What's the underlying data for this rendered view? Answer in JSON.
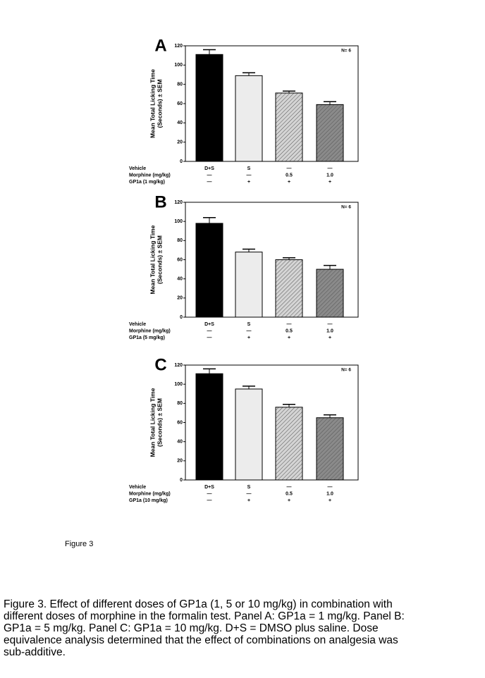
{
  "chart_data": [
    {
      "type": "bar",
      "panel": "A",
      "note": "N= 6",
      "ylabel_lines": [
        "Mean Total Licking Time",
        "(Seconds) ± SEM"
      ],
      "ylim": [
        0,
        120
      ],
      "yticks": [
        0,
        20,
        40,
        60,
        80,
        100,
        120
      ],
      "values": [
        111,
        89,
        71,
        59
      ],
      "errors": [
        5,
        3,
        2,
        3
      ],
      "colors": [
        "#000000",
        "#ececec",
        "#d4d4d4",
        "#8a8a8a"
      ],
      "hatched": [
        false,
        false,
        true,
        true
      ],
      "table": [
        {
          "label": "Vehicle",
          "cells": [
            "D+S",
            "S",
            "—",
            "—"
          ]
        },
        {
          "label": "Morphine (mg/kg)",
          "cells": [
            "—",
            "—",
            "0.5",
            "1.0"
          ]
        },
        {
          "label": "GP1a (1 mg/kg)",
          "cells": [
            "—",
            "+",
            "+",
            "+"
          ]
        }
      ]
    },
    {
      "type": "bar",
      "panel": "B",
      "note": "N= 6",
      "ylabel_lines": [
        "Mean Total Licking Time",
        "(Seconds) ± SEM"
      ],
      "ylim": [
        0,
        120
      ],
      "yticks": [
        0,
        20,
        40,
        60,
        80,
        100,
        120
      ],
      "values": [
        98,
        68,
        60,
        50
      ],
      "errors": [
        6,
        3,
        2,
        4
      ],
      "colors": [
        "#000000",
        "#ececec",
        "#d4d4d4",
        "#8a8a8a"
      ],
      "hatched": [
        false,
        false,
        true,
        true
      ],
      "table": [
        {
          "label": "Vehicle",
          "cells": [
            "D+S",
            "S",
            "—",
            "—"
          ]
        },
        {
          "label": "Morphine (mg/kg)",
          "cells": [
            "—",
            "—",
            "0.5",
            "1.0"
          ]
        },
        {
          "label": "GP1a (5 mg/kg)",
          "cells": [
            "—",
            "+",
            "+",
            "+"
          ]
        }
      ]
    },
    {
      "type": "bar",
      "panel": "C",
      "note": "N= 6",
      "ylabel_lines": [
        "Mean Total Licking Time",
        "(Seconds) ± SEM"
      ],
      "ylim": [
        0,
        120
      ],
      "yticks": [
        0,
        20,
        40,
        60,
        80,
        100,
        120
      ],
      "values": [
        111,
        95,
        76,
        65
      ],
      "errors": [
        5,
        3,
        3,
        3
      ],
      "colors": [
        "#000000",
        "#ececec",
        "#d4d4d4",
        "#8a8a8a"
      ],
      "hatched": [
        false,
        false,
        true,
        true
      ],
      "table": [
        {
          "label": "Vehicle",
          "cells": [
            "D+S",
            "S",
            "—",
            "—"
          ]
        },
        {
          "label": "Morphine (mg/kg)",
          "cells": [
            "—",
            "—",
            "0.5",
            "1.0"
          ]
        },
        {
          "label": "GP1a (10 mg/kg)",
          "cells": [
            "—",
            "+",
            "+",
            "+"
          ]
        }
      ]
    }
  ],
  "figure_label": "Figure 3",
  "caption_lines": [
    "Figure 3. Effect of different doses of GP1a (1, 5 or 10 mg/kg) in combination with",
    "different doses of morphine in the formalin test.  Panel A: GP1a = 1 mg/kg. Panel B:",
    "GP1a = 5 mg/kg. Panel C: GP1a = 10 mg/kg. D+S = DMSO plus saline. Dose",
    "equivalence analysis determined that the effect of combinations on analgesia was",
    "sub-additive."
  ]
}
